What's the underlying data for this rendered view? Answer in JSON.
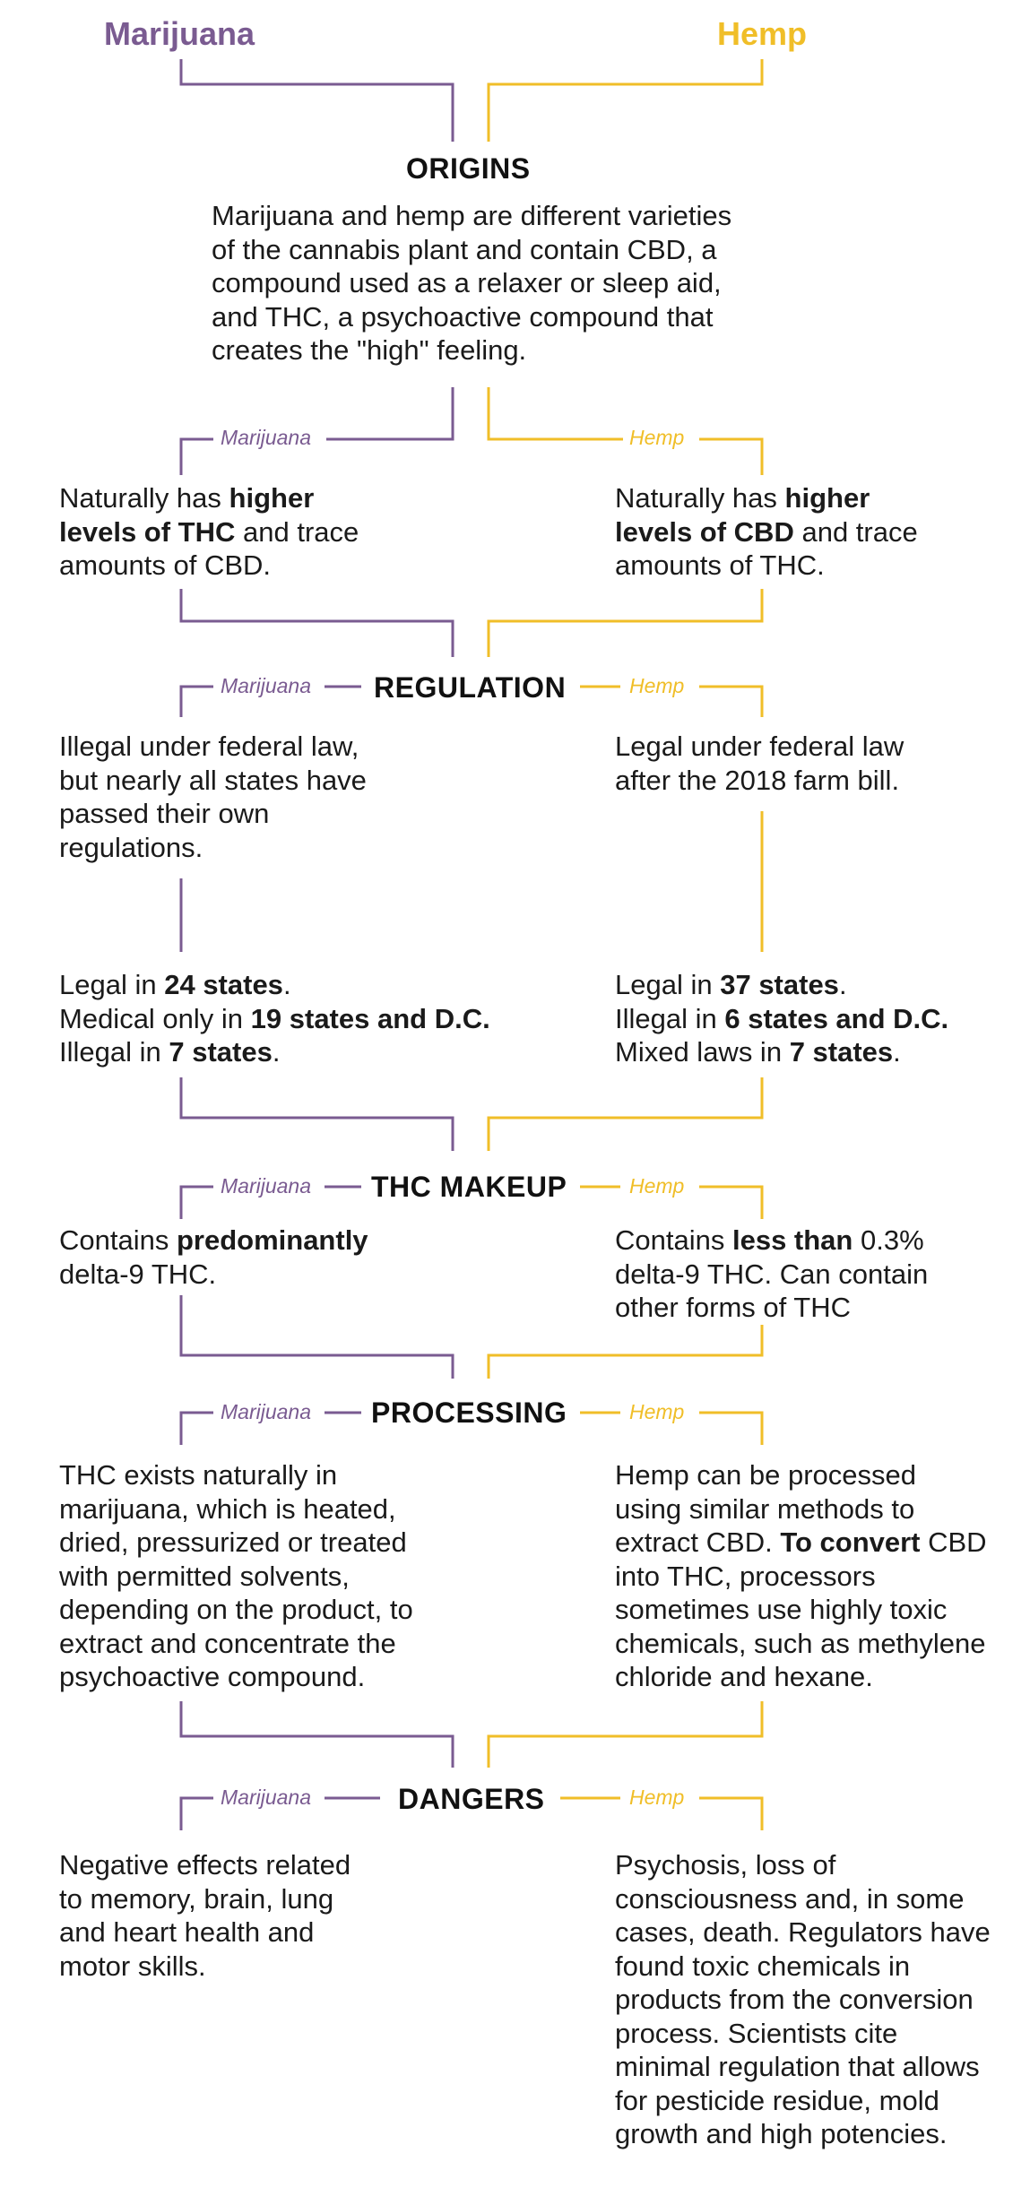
{
  "colors": {
    "marijuana": "#7a5b91",
    "hemp": "#f0be28",
    "text": "#1a1a1a"
  },
  "titles": {
    "left": "Marijuana",
    "right": "Hemp"
  },
  "origins": {
    "heading": "ORIGINS",
    "lines": [
      "Marijuana and hemp are different varieties",
      "of the cannabis plant and contain CBD, a",
      "compound used as a relaxer or sleep aid,",
      "and THC, a psychoactive compound that",
      "creates the \"high\" feeling."
    ]
  },
  "sub_labels": {
    "left": "Marijuana",
    "right": "Hemp"
  },
  "sections": {
    "levels": {
      "left": [
        [
          {
            "t": "Naturally has "
          },
          {
            "t": "higher",
            "b": true
          }
        ],
        [
          {
            "t": "levels of THC",
            "b": true
          },
          {
            "t": " and trace"
          }
        ],
        [
          {
            "t": "amounts of CBD."
          }
        ]
      ],
      "right": [
        [
          {
            "t": "Naturally has "
          },
          {
            "t": "higher",
            "b": true
          }
        ],
        [
          {
            "t": "levels of CBD",
            "b": true
          },
          {
            "t": " and trace"
          }
        ],
        [
          {
            "t": "amounts of THC."
          }
        ]
      ]
    },
    "regulation": {
      "heading": "REGULATION",
      "left": [
        [
          {
            "t": "Illegal under federal law,"
          }
        ],
        [
          {
            "t": "but nearly all states have"
          }
        ],
        [
          {
            "t": "passed their own"
          }
        ],
        [
          {
            "t": "regulations."
          }
        ]
      ],
      "right": [
        [
          {
            "t": "Legal under federal law"
          }
        ],
        [
          {
            "t": "after the 2018 farm bill."
          }
        ]
      ]
    },
    "states": {
      "left": [
        [
          {
            "t": "Legal in "
          },
          {
            "t": "24 states",
            "b": true
          },
          {
            "t": "."
          }
        ],
        [
          {
            "t": "Medical only in "
          },
          {
            "t": "19 states and D.C.",
            "b": true
          }
        ],
        [
          {
            "t": "Illegal in "
          },
          {
            "t": "7 states",
            "b": true
          },
          {
            "t": "."
          }
        ]
      ],
      "right": [
        [
          {
            "t": "Legal in "
          },
          {
            "t": "37 states",
            "b": true
          },
          {
            "t": "."
          }
        ],
        [
          {
            "t": "Illegal in "
          },
          {
            "t": "6 states and D.C.",
            "b": true
          }
        ],
        [
          {
            "t": "Mixed laws in "
          },
          {
            "t": "7 states",
            "b": true
          },
          {
            "t": "."
          }
        ]
      ]
    },
    "thc_makeup": {
      "heading": "THC MAKEUP",
      "left": [
        [
          {
            "t": "Contains "
          },
          {
            "t": "predominantly",
            "b": true
          }
        ],
        [
          {
            "t": "delta-9 THC."
          }
        ]
      ],
      "right": [
        [
          {
            "t": "Contains "
          },
          {
            "t": "less than",
            "b": true
          },
          {
            "t": " 0.3%"
          }
        ],
        [
          {
            "t": "delta-9 THC. Can contain"
          }
        ],
        [
          {
            "t": "other forms of THC"
          }
        ]
      ]
    },
    "processing": {
      "heading": "PROCESSING",
      "left": [
        [
          {
            "t": "THC exists naturally in"
          }
        ],
        [
          {
            "t": "marijuana, which is heated,"
          }
        ],
        [
          {
            "t": "dried, pressurized or treated"
          }
        ],
        [
          {
            "t": "with permitted solvents,"
          }
        ],
        [
          {
            "t": "depending on the product, to"
          }
        ],
        [
          {
            "t": "extract and concentrate the"
          }
        ],
        [
          {
            "t": "psychoactive compound."
          }
        ]
      ],
      "right": [
        [
          {
            "t": "Hemp can be processed"
          }
        ],
        [
          {
            "t": "using similar methods to"
          }
        ],
        [
          {
            "t": "extract CBD. "
          },
          {
            "t": "To convert",
            "b": true
          },
          {
            "t": " CBD"
          }
        ],
        [
          {
            "t": "into THC, processors"
          }
        ],
        [
          {
            "t": "sometimes use highly toxic"
          }
        ],
        [
          {
            "t": "chemicals, such as methylene"
          }
        ],
        [
          {
            "t": "chloride and hexane."
          }
        ]
      ]
    },
    "dangers": {
      "heading": "DANGERS",
      "left": [
        [
          {
            "t": "Negative effects related"
          }
        ],
        [
          {
            "t": "to memory, brain, lung"
          }
        ],
        [
          {
            "t": "and heart health and"
          }
        ],
        [
          {
            "t": "motor skills."
          }
        ]
      ],
      "right": [
        [
          {
            "t": "Psychosis, loss of"
          }
        ],
        [
          {
            "t": "consciousness and, in some"
          }
        ],
        [
          {
            "t": "cases, death. Regulators have"
          }
        ],
        [
          {
            "t": "found toxic chemicals in"
          }
        ],
        [
          {
            "t": "products from the conversion"
          }
        ],
        [
          {
            "t": "process. Scientists cite"
          }
        ],
        [
          {
            "t": "minimal regulation that allows"
          }
        ],
        [
          {
            "t": "for pesticide residue, mold"
          }
        ],
        [
          {
            "t": "growth and high potencies."
          }
        ]
      ]
    }
  }
}
